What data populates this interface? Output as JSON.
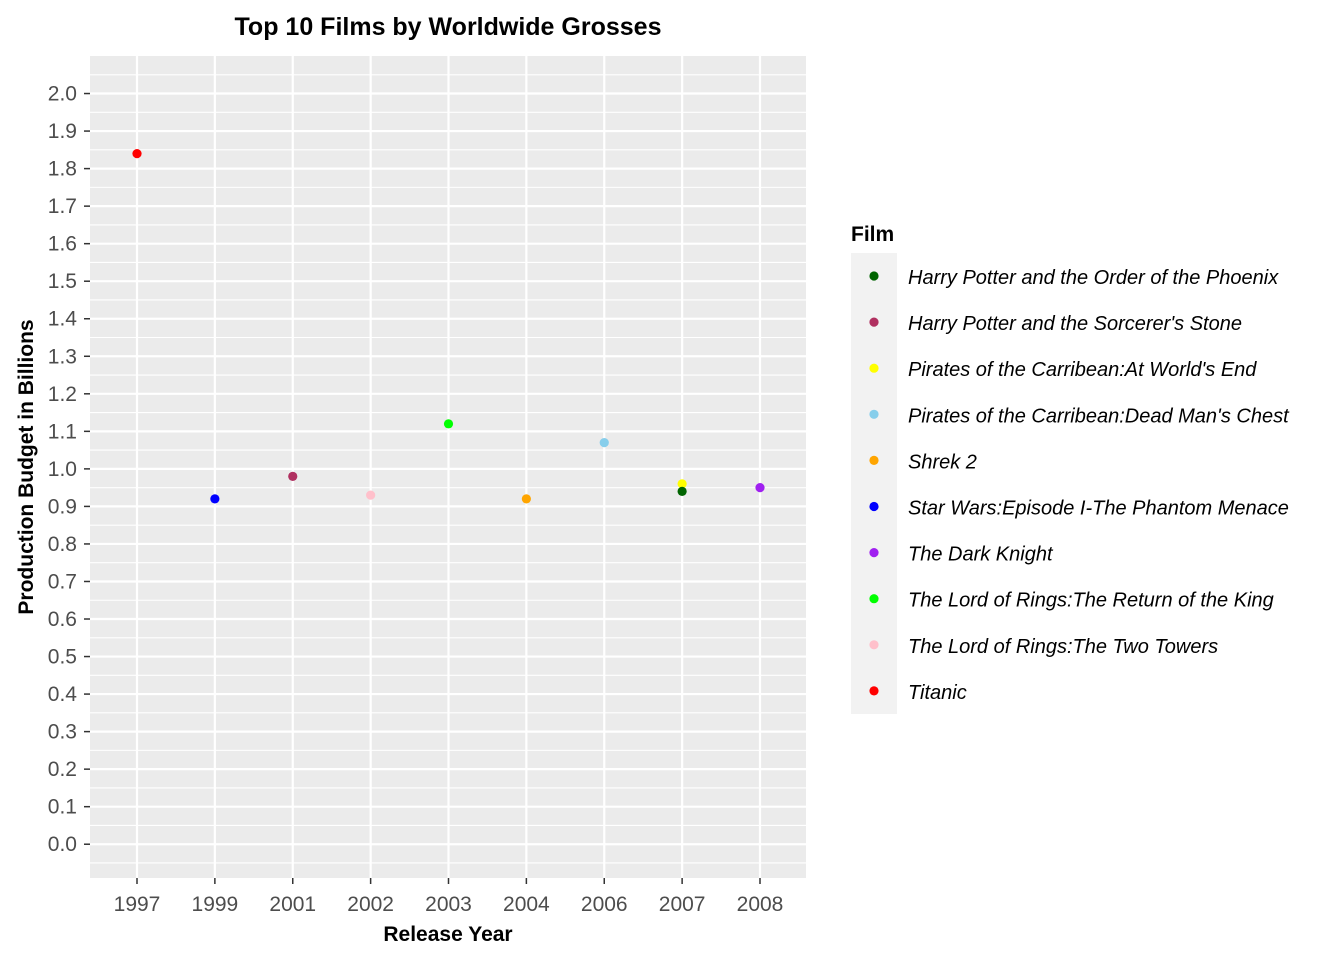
{
  "chart_data": {
    "type": "scatter",
    "title": "Top 10 Films by Worldwide Grosses",
    "xlabel": "Release Year",
    "ylabel": "Production Budget in Billions",
    "x_categories": [
      "1997",
      "1999",
      "2001",
      "2002",
      "2003",
      "2004",
      "2006",
      "2007",
      "2008"
    ],
    "y_ticks": [
      "0.0",
      "0.1",
      "0.2",
      "0.3",
      "0.4",
      "0.5",
      "0.6",
      "0.7",
      "0.8",
      "0.9",
      "1.0",
      "1.1",
      "1.2",
      "1.3",
      "1.4",
      "1.5",
      "1.6",
      "1.7",
      "1.8",
      "1.9",
      "2.0"
    ],
    "ylim": [
      -0.09,
      2.1
    ],
    "grid": true,
    "legend": {
      "title": "Film",
      "placement": "right"
    },
    "series": [
      {
        "name": "Harry Potter and the Order of the Phoenix",
        "color": "#006400",
        "x": "2007",
        "y": 0.94
      },
      {
        "name": "Harry Potter and the Sorcerer's Stone",
        "color": "#b03060",
        "x": "2001",
        "y": 0.98
      },
      {
        "name": "Pirates of the Carribean:At World's End",
        "color": "#ffff00",
        "x": "2007",
        "y": 0.96
      },
      {
        "name": "Pirates of the Carribean:Dead Man's Chest",
        "color": "#87ceeb",
        "x": "2006",
        "y": 1.07
      },
      {
        "name": "Shrek 2",
        "color": "#ffa500",
        "x": "2004",
        "y": 0.92
      },
      {
        "name": "Star Wars:Episode I-The Phantom Menace",
        "color": "#0000ff",
        "x": "1999",
        "y": 0.92
      },
      {
        "name": "The Dark Knight",
        "color": "#a020f0",
        "x": "2008",
        "y": 0.95
      },
      {
        "name": "The Lord of Rings:The Return of the King",
        "color": "#00ff00",
        "x": "2003",
        "y": 1.12
      },
      {
        "name": "The Lord of Rings:The Two Towers",
        "color": "#ffc0cb",
        "x": "2002",
        "y": 0.93
      },
      {
        "name": "Titanic",
        "color": "#ff0000",
        "x": "1997",
        "y": 1.84
      }
    ],
    "draw_order": [
      2,
      0,
      1,
      3,
      4,
      5,
      6,
      7,
      8,
      9
    ]
  }
}
